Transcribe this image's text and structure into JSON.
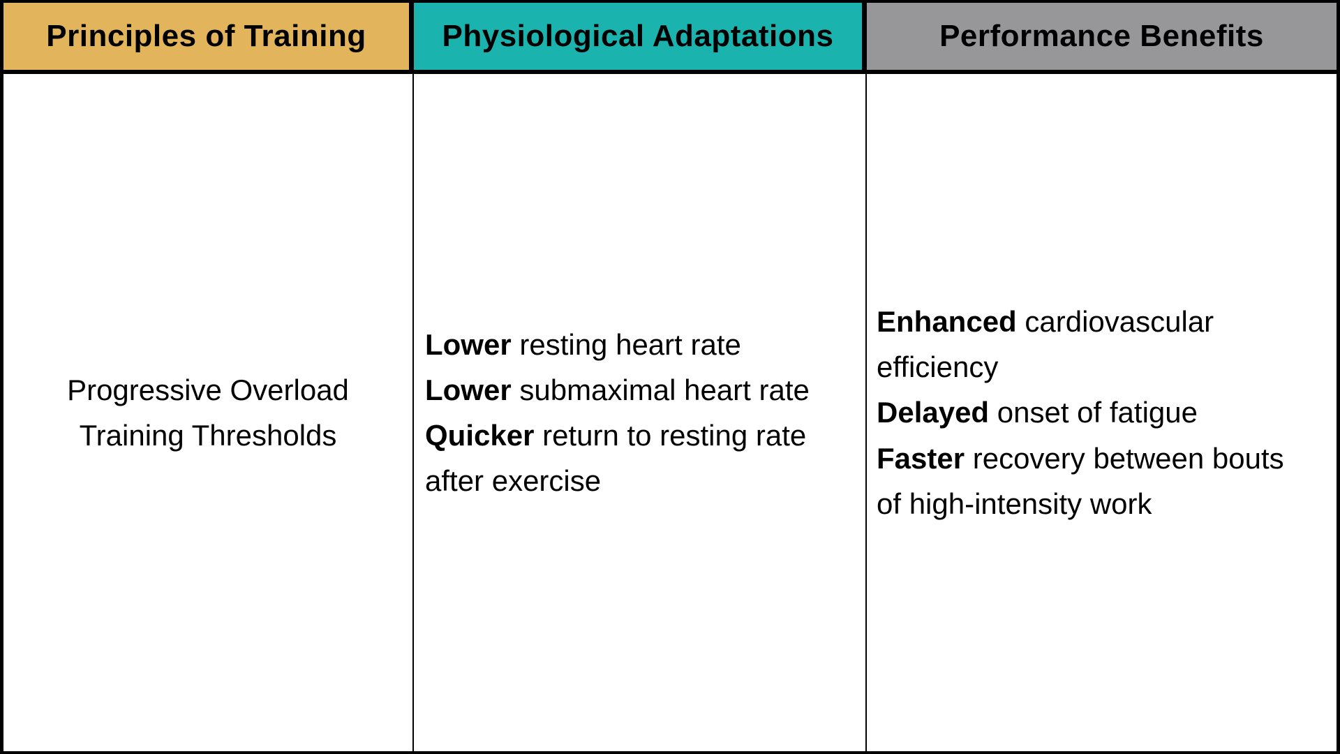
{
  "colors": {
    "border": "#000000",
    "text": "#000000",
    "background": "#ffffff",
    "header_principles_bg": "#e2b45c",
    "header_adaptations_bg": "#1bb3ae",
    "header_benefits_bg": "#97979a"
  },
  "table": {
    "columns": [
      {
        "id": "principles",
        "header": "Principles of Training",
        "items": [
          {
            "lead": "",
            "rest": "Progressive Overload"
          },
          {
            "lead": "",
            "rest": "Training Thresholds"
          }
        ]
      },
      {
        "id": "adaptations",
        "header": "Physiological Adaptations",
        "items": [
          {
            "lead": "Lower",
            "rest": " resting heart rate"
          },
          {
            "lead": "Lower",
            "rest": " submaximal heart rate"
          },
          {
            "lead": "Quicker",
            "rest": " return to resting rate after exercise"
          }
        ]
      },
      {
        "id": "benefits",
        "header": "Performance Benefits",
        "items": [
          {
            "lead": "Enhanced",
            "rest": " cardiovascular efficiency"
          },
          {
            "lead": "Delayed",
            "rest": " onset of fatigue"
          },
          {
            "lead": "Faster",
            "rest": " recovery between bouts of high-intensity work"
          }
        ]
      }
    ]
  }
}
